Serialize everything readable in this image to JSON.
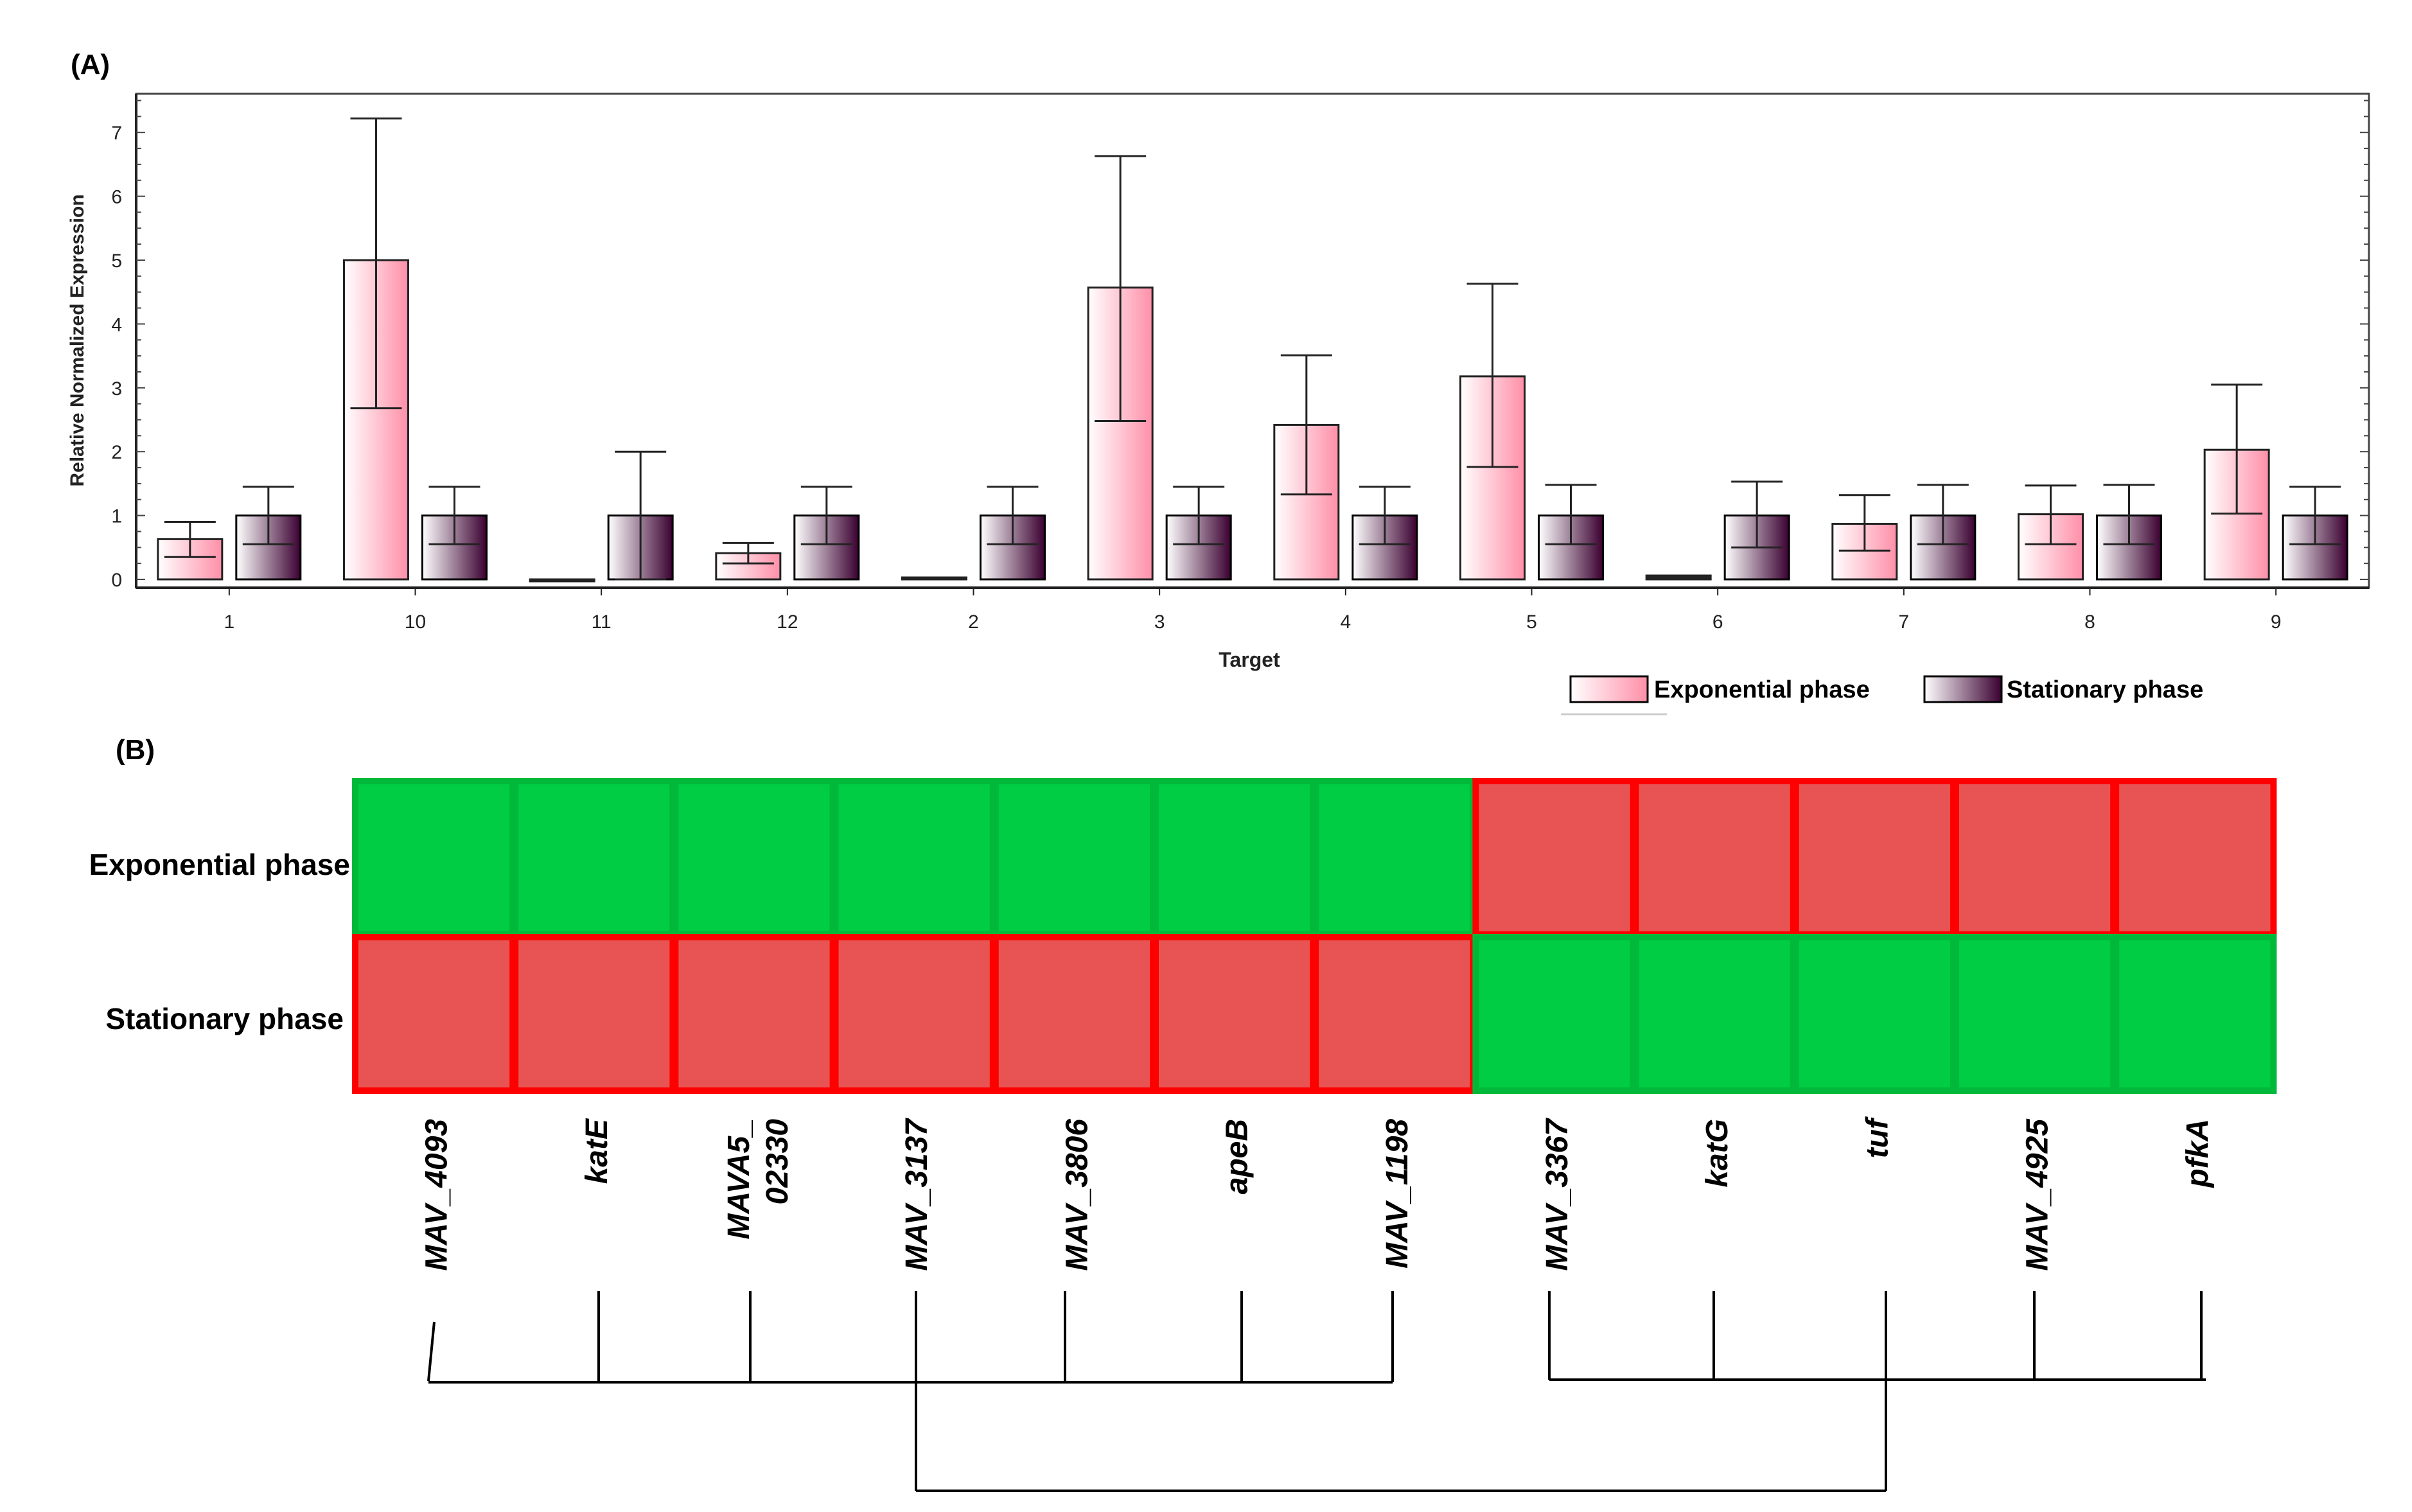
{
  "panel_a": {
    "label": "(A)",
    "legend": [
      "Exponential phase",
      "Stationary phase"
    ]
  },
  "panel_b": {
    "label": "(B)",
    "rows": [
      "Exponential phase",
      "Stationary phase"
    ],
    "genes": [
      "MAV_4093",
      "katE",
      "MAVA5_\n02330",
      "MAV_3137",
      "MAV_3806",
      "apeB",
      "MAV_1198",
      "MAV_3367",
      "katG",
      "tuf",
      "MAV_4925",
      "pfkA"
    ],
    "matrix": [
      [
        "green",
        "green",
        "green",
        "green",
        "green",
        "green",
        "green",
        "red",
        "red",
        "red",
        "red",
        "red"
      ],
      [
        "red",
        "red",
        "red",
        "red",
        "red",
        "red",
        "red",
        "green",
        "green",
        "green",
        "green",
        "green"
      ]
    ],
    "dendrogram": {
      "cluster_1": [
        "MAV_4093",
        "katE",
        "MAVA5_02330",
        "MAV_3137",
        "MAV_3806",
        "apeB",
        "MAV_1198"
      ],
      "cluster_2": [
        "MAV_3367",
        "katG",
        "tuf",
        "MAV_4925",
        "pfkA"
      ]
    }
  },
  "colors": {
    "exp_light": "#ffffff",
    "exp_dark": "#ff8fa8",
    "stat_light": "#ffffff",
    "stat_dark": "#3a0030",
    "heat_green": "#00cc44",
    "heat_red": "#e85454",
    "heat_red_edge": "#ff0000",
    "heat_green_edge": "#00b83a"
  },
  "chart_data": {
    "type": "bar",
    "title": "",
    "xlabel": "Target",
    "ylabel": "Relative Normalized Expression",
    "ylim": [
      0,
      7.5
    ],
    "yticks": [
      "0",
      "1",
      "2",
      "3",
      "4",
      "5",
      "6",
      "7"
    ],
    "categories": [
      "1",
      "10",
      "11",
      "12",
      "2",
      "3",
      "4",
      "5",
      "6",
      "7",
      "8",
      "9"
    ],
    "series": [
      {
        "name": "Exponential phase",
        "values": [
          0.63,
          5.0,
          0.0,
          0.41,
          0.03,
          4.57,
          2.42,
          3.18,
          0.06,
          0.87,
          1.02,
          2.03
        ],
        "err_low": [
          0.35,
          2.68,
          0.0,
          0.25,
          0.02,
          2.48,
          1.33,
          1.76,
          0.04,
          0.45,
          0.55,
          1.03
        ],
        "err_high": [
          0.9,
          7.22,
          0.0,
          0.57,
          0.04,
          6.63,
          3.51,
          4.63,
          0.08,
          1.32,
          1.47,
          3.05
        ]
      },
      {
        "name": "Stationary phase",
        "values": [
          1.0,
          1.0,
          1.0,
          1.0,
          1.0,
          1.0,
          1.0,
          1.0,
          1.0,
          1.0,
          1.0,
          1.0
        ],
        "err_low": [
          0.55,
          0.55,
          0.0,
          0.55,
          0.55,
          0.55,
          0.55,
          0.55,
          0.5,
          0.55,
          0.55,
          0.55
        ],
        "err_high": [
          1.45,
          1.45,
          2.0,
          1.45,
          1.45,
          1.45,
          1.45,
          1.48,
          1.53,
          1.48,
          1.48,
          1.45
        ]
      }
    ]
  }
}
